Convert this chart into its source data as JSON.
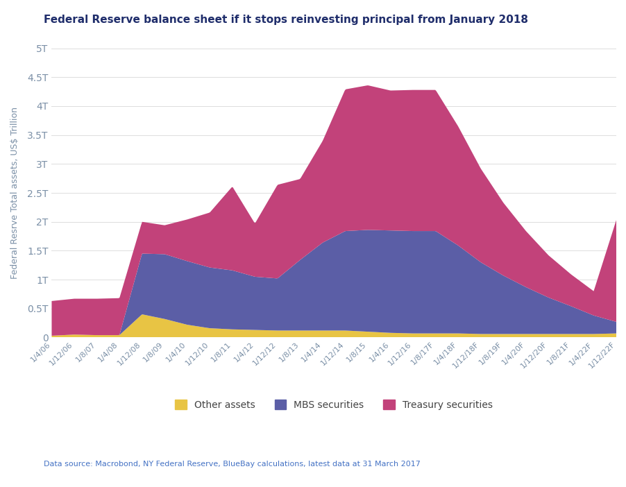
{
  "title": "Federal Reserve balance sheet if it stops reinvesting principal from January 2018",
  "ylabel": "Federal Resrve Total assets, US$ Trillion",
  "datasource": "Data source: Macrobond, NY Federal Reserve, BlueBay calculations, latest data at 31 March 2017",
  "colors": {
    "other": "#E8C444",
    "mbs": "#5B5EA6",
    "treasury": "#C2427A"
  },
  "legend_labels": [
    "Other assets",
    "MBS securities",
    "Treasury securities"
  ],
  "title_color": "#1F2D6B",
  "ylabel_color": "#8A9BB0",
  "tick_color": "#8A9BB0",
  "yticks": [
    0,
    0.5,
    1.0,
    1.5,
    2.0,
    2.5,
    3.0,
    3.5,
    4.0,
    4.5,
    5.0
  ],
  "ytick_labels": [
    "0",
    "0.5T",
    "1T",
    "1.5T",
    "2T",
    "2.5T",
    "3T",
    "3.5T",
    "4T",
    "4.5T",
    "5T"
  ],
  "x_labels": [
    "1/4/06",
    "1/12/06",
    "1/8/07",
    "1/4/08",
    "1/12/08",
    "1/8/09",
    "1/4/10",
    "1/12/10",
    "1/8/11",
    "1/4/12",
    "1/12/12",
    "1/8/13",
    "1/4/14",
    "1/12/14",
    "1/8/15",
    "1/4/16",
    "1/12/16",
    "1/8/17F",
    "1/4/18F",
    "1/12/18F",
    "1/8/19F",
    "1/4/20F",
    "1/12/20F",
    "1/8/21F",
    "1/4/22F",
    "1/12/22F"
  ],
  "other_assets": [
    0.03,
    0.05,
    0.05,
    0.05,
    0.38,
    0.3,
    0.22,
    0.16,
    0.12,
    0.12,
    0.12,
    0.12,
    0.12,
    0.12,
    0.1,
    0.08,
    0.07,
    0.07,
    0.07,
    0.06,
    0.06,
    0.06,
    0.06,
    0.06,
    0.06,
    0.07
  ],
  "mbs_securities": [
    0.0,
    0.0,
    0.0,
    0.0,
    1.0,
    1.12,
    1.12,
    1.05,
    1.0,
    0.9,
    0.88,
    1.2,
    1.5,
    1.72,
    1.75,
    1.77,
    1.77,
    1.77,
    1.5,
    1.22,
    1.0,
    0.8,
    0.62,
    0.46,
    0.3,
    0.18
  ],
  "treasury_securities": [
    0.62,
    0.65,
    0.65,
    0.65,
    0.6,
    0.52,
    0.72,
    0.9,
    1.45,
    0.93,
    1.6,
    1.4,
    1.75,
    2.45,
    2.52,
    2.43,
    2.45,
    2.45,
    2.05,
    1.6,
    1.25,
    0.95,
    0.72,
    0.55,
    0.42,
    1.75
  ],
  "background_color": "#FFFFFF"
}
